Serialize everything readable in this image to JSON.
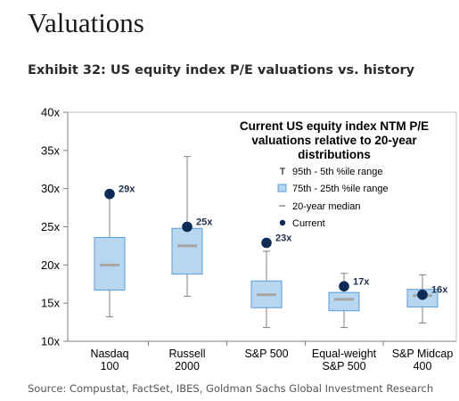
{
  "header": {
    "title": "Valuations",
    "subtitle": "Exhibit 32: US equity index P/E valuations vs. history"
  },
  "footer": {
    "source": "Source: Compustat, FactSet, IBES, Goldman Sachs Global Investment Research"
  },
  "chart_data": {
    "type": "box",
    "title": "Current US equity index NTM P/E valuations relative to 20-year distributions",
    "title_lines": [
      "Current US equity index NTM P/E",
      "valuations relative to 20-year",
      "distributions"
    ],
    "y_ticks": [
      "10x",
      "15x",
      "20x",
      "25x",
      "30x",
      "35x",
      "40x"
    ],
    "ylim": [
      10,
      40
    ],
    "grid": false,
    "legend": {
      "placement": "top-right",
      "items": [
        {
          "symbol": "T",
          "label": "95th - 5th %ile range"
        },
        {
          "symbol": "box",
          "label": "75th - 25th %ile range"
        },
        {
          "symbol": "line",
          "label": "20-year median"
        },
        {
          "symbol": "dot",
          "label": "Current"
        }
      ]
    },
    "colors": {
      "box_fill": "#b7d6f0",
      "box_stroke": "#5b9bd5",
      "median": "#a5a5a5",
      "current": "#0b2a55",
      "whisker": "#7f7f7f",
      "label_text": "#1f2d4d"
    },
    "categories": [
      {
        "label_lines": [
          "Nasdaq",
          "100"
        ],
        "p5": 13.2,
        "p25": 16.7,
        "median": 20.0,
        "p75": 23.6,
        "p95": 29.0,
        "current": 29.3,
        "current_label": "29x"
      },
      {
        "label_lines": [
          "Russell",
          "2000"
        ],
        "p5": 15.9,
        "p25": 18.8,
        "median": 22.5,
        "p75": 24.8,
        "p95": 34.2,
        "current": 25.0,
        "current_label": "25x"
      },
      {
        "label_lines": [
          "S&P 500"
        ],
        "p5": 11.8,
        "p25": 14.4,
        "median": 16.1,
        "p75": 17.9,
        "p95": 21.8,
        "current": 22.9,
        "current_label": "23x"
      },
      {
        "label_lines": [
          "Equal-weight",
          "S&P 500"
        ],
        "p5": 11.8,
        "p25": 14.0,
        "median": 15.5,
        "p75": 16.4,
        "p95": 18.9,
        "current": 17.2,
        "current_label": "17x"
      },
      {
        "label_lines": [
          "S&P Midcap",
          "400"
        ],
        "p5": 12.4,
        "p25": 14.5,
        "median": 16.0,
        "p75": 16.8,
        "p95": 18.7,
        "current": 16.1,
        "current_label": "16x"
      }
    ]
  }
}
